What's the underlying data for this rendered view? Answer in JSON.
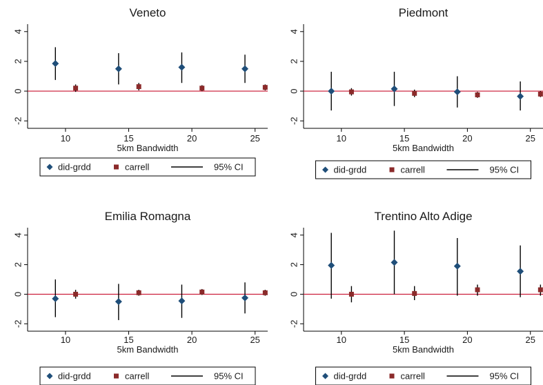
{
  "colors": {
    "did_grdd": "#1f4e79",
    "carrell": "#8b2a2a",
    "ci": "#000000",
    "zero_line": "#c8102e",
    "axis": "#000000"
  },
  "chart_data": [
    {
      "type": "scatter",
      "title": "Veneto",
      "xlabel": "5km Bandwidth",
      "ylabel": "",
      "xlim": [
        7,
        26
      ],
      "ylim": [
        -2.5,
        4.5
      ],
      "xticks": [
        "10",
        "15",
        "20",
        "25"
      ],
      "yticks": [
        "-2",
        "0",
        "2",
        "4"
      ],
      "zero_line": 0,
      "legend": [
        "did-grdd",
        "carrell",
        "95% CI"
      ],
      "series": [
        {
          "name": "did-grdd",
          "marker": "diamond",
          "x": [
            9.2,
            14.2,
            19.2,
            24.2
          ],
          "y": [
            1.85,
            1.5,
            1.6,
            1.5
          ],
          "ci_low": [
            0.75,
            0.45,
            0.55,
            0.55
          ],
          "ci_high": [
            2.95,
            2.55,
            2.6,
            2.45
          ]
        },
        {
          "name": "carrell",
          "marker": "square",
          "x": [
            10.8,
            15.8,
            20.8,
            25.8
          ],
          "y": [
            0.2,
            0.3,
            0.2,
            0.25
          ],
          "ci_low": [
            -0.05,
            0.05,
            0.0,
            0.05
          ],
          "ci_high": [
            0.45,
            0.55,
            0.4,
            0.45
          ]
        }
      ]
    },
    {
      "type": "scatter",
      "title": "Piedmont",
      "xlabel": "5km Bandwidth",
      "ylabel": "",
      "xlim": [
        7,
        26
      ],
      "ylim": [
        -2.5,
        4.5
      ],
      "xticks": [
        "10",
        "15",
        "20",
        "25"
      ],
      "yticks": [
        "-2",
        "0",
        "2",
        "4"
      ],
      "zero_line": 0,
      "legend": [
        "did-grdd",
        "carrell",
        "95% CI"
      ],
      "series": [
        {
          "name": "did-grdd",
          "marker": "diamond",
          "x": [
            9.2,
            14.2,
            19.2,
            24.2
          ],
          "y": [
            0.0,
            0.15,
            -0.05,
            -0.35
          ],
          "ci_low": [
            -1.3,
            -1.0,
            -1.1,
            -1.3
          ],
          "ci_high": [
            1.3,
            1.3,
            1.0,
            0.65
          ]
        },
        {
          "name": "carrell",
          "marker": "square",
          "x": [
            10.8,
            15.8,
            20.8,
            25.8
          ],
          "y": [
            -0.05,
            -0.15,
            -0.25,
            -0.2
          ],
          "ci_low": [
            -0.3,
            -0.4,
            -0.45,
            -0.4
          ],
          "ci_high": [
            0.2,
            0.1,
            -0.05,
            0.0
          ]
        }
      ]
    },
    {
      "type": "scatter",
      "title": "Emilia Romagna",
      "xlabel": "5km Bandwidth",
      "ylabel": "",
      "xlim": [
        7,
        26
      ],
      "ylim": [
        -2.5,
        4.5
      ],
      "xticks": [
        "10",
        "15",
        "20",
        "25"
      ],
      "yticks": [
        "-2",
        "0",
        "2",
        "4"
      ],
      "zero_line": 0,
      "legend": [
        "did-grdd",
        "carrell",
        "95% CI"
      ],
      "series": [
        {
          "name": "did-grdd",
          "marker": "diamond",
          "x": [
            9.2,
            14.2,
            19.2,
            24.2
          ],
          "y": [
            -0.3,
            -0.5,
            -0.45,
            -0.25
          ],
          "ci_low": [
            -1.55,
            -1.75,
            -1.6,
            -1.3
          ],
          "ci_high": [
            1.0,
            0.7,
            0.65,
            0.8
          ]
        },
        {
          "name": "carrell",
          "marker": "square",
          "x": [
            10.8,
            15.8,
            20.8,
            25.8
          ],
          "y": [
            0.0,
            0.1,
            0.15,
            0.1
          ],
          "ci_low": [
            -0.3,
            -0.1,
            -0.05,
            -0.1
          ],
          "ci_high": [
            0.3,
            0.3,
            0.35,
            0.3
          ]
        }
      ]
    },
    {
      "type": "scatter",
      "title": "Trentino Alto Adige",
      "xlabel": "5km Bandwidth",
      "ylabel": "",
      "xlim": [
        7,
        26
      ],
      "ylim": [
        -2.5,
        4.5
      ],
      "xticks": [
        "10",
        "15",
        "20",
        "25"
      ],
      "yticks": [
        "-2",
        "0",
        "2",
        "4"
      ],
      "zero_line": 0,
      "legend": [
        "did-grdd",
        "carrell",
        "95% CI"
      ],
      "series": [
        {
          "name": "did-grdd",
          "marker": "diamond",
          "x": [
            9.2,
            14.2,
            19.2,
            24.2
          ],
          "y": [
            1.95,
            2.15,
            1.9,
            1.55
          ],
          "ci_low": [
            -0.3,
            0.0,
            -0.1,
            -0.2
          ],
          "ci_high": [
            4.15,
            4.3,
            3.8,
            3.3
          ]
        },
        {
          "name": "carrell",
          "marker": "square",
          "x": [
            10.8,
            15.8,
            20.8,
            25.8
          ],
          "y": [
            0.0,
            0.05,
            0.3,
            0.3
          ],
          "ci_low": [
            -0.55,
            -0.4,
            -0.1,
            -0.1
          ],
          "ci_high": [
            0.55,
            0.55,
            0.65,
            0.65
          ]
        }
      ]
    }
  ]
}
